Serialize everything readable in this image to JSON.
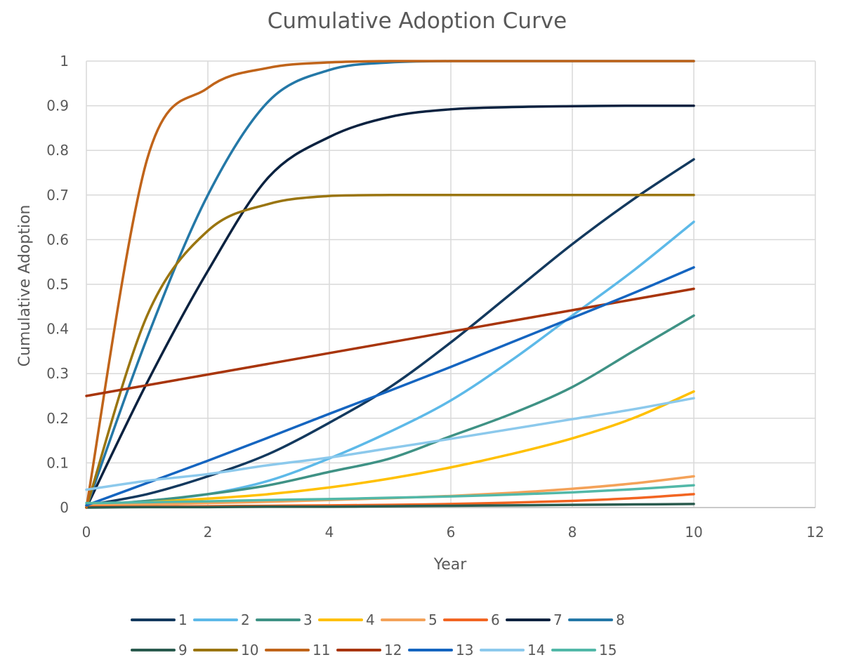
{
  "chart_data": {
    "type": "line",
    "title": "Cumulative Adoption Curve",
    "xlabel": "Year",
    "ylabel": "Cumulative Adoption",
    "xlim": [
      0,
      12
    ],
    "ylim": [
      0,
      1
    ],
    "x_ticks": [
      "0",
      "2",
      "4",
      "6",
      "8",
      "10",
      "12"
    ],
    "y_ticks": [
      "0",
      "0.1",
      "0.2",
      "0.3",
      "0.4",
      "0.5",
      "0.6",
      "0.7",
      "0.8",
      "0.9",
      "1"
    ],
    "grid": true,
    "legend_position": "bottom",
    "x": [
      0,
      1,
      2,
      3,
      4,
      5,
      6,
      7,
      8,
      9,
      10
    ],
    "series": [
      {
        "name": "1",
        "color": "#13395E",
        "values": [
          0.005,
          0.03,
          0.07,
          0.12,
          0.19,
          0.27,
          0.37,
          0.48,
          0.59,
          0.69,
          0.78
        ]
      },
      {
        "name": "2",
        "color": "#5DB9E8",
        "values": [
          0.005,
          0.015,
          0.03,
          0.06,
          0.11,
          0.17,
          0.24,
          0.33,
          0.43,
          0.53,
          0.64
        ]
      },
      {
        "name": "3",
        "color": "#3F9285",
        "values": [
          0.005,
          0.015,
          0.03,
          0.05,
          0.08,
          0.11,
          0.16,
          0.21,
          0.27,
          0.35,
          0.43
        ]
      },
      {
        "name": "4",
        "color": "#FFC000",
        "values": [
          0.005,
          0.012,
          0.02,
          0.03,
          0.045,
          0.065,
          0.09,
          0.12,
          0.155,
          0.2,
          0.26
        ]
      },
      {
        "name": "5",
        "color": "#F4A259",
        "values": [
          0.005,
          0.007,
          0.01,
          0.013,
          0.017,
          0.021,
          0.026,
          0.033,
          0.042,
          0.054,
          0.07
        ]
      },
      {
        "name": "6",
        "color": "#F26522",
        "values": [
          0.002,
          0.002,
          0.003,
          0.004,
          0.005,
          0.006,
          0.008,
          0.011,
          0.015,
          0.021,
          0.03
        ]
      },
      {
        "name": "7",
        "color": "#0B2240",
        "values": [
          0.0,
          0.28,
          0.53,
          0.74,
          0.83,
          0.875,
          0.892,
          0.897,
          0.899,
          0.9,
          0.9
        ]
      },
      {
        "name": "8",
        "color": "#2478A7",
        "values": [
          0.0,
          0.38,
          0.7,
          0.91,
          0.98,
          0.997,
          1.0,
          1.0,
          1.0,
          1.0,
          1.0
        ]
      },
      {
        "name": "9",
        "color": "#2A5B4E",
        "values": [
          0.0,
          0.001,
          0.001,
          0.002,
          0.002,
          0.003,
          0.004,
          0.005,
          0.006,
          0.007,
          0.008
        ]
      },
      {
        "name": "10",
        "color": "#9A7510",
        "values": [
          0.0,
          0.43,
          0.62,
          0.68,
          0.698,
          0.7,
          0.7,
          0.7,
          0.7,
          0.7,
          0.7
        ]
      },
      {
        "name": "11",
        "color": "#C0641A",
        "values": [
          0.0,
          0.78,
          0.94,
          0.985,
          0.997,
          1.0,
          1.0,
          1.0,
          1.0,
          1.0,
          1.0
        ]
      },
      {
        "name": "12",
        "color": "#A8350B",
        "values": [
          0.25,
          0.274,
          0.298,
          0.322,
          0.346,
          0.37,
          0.394,
          0.418,
          0.442,
          0.466,
          0.49
        ]
      },
      {
        "name": "13",
        "color": "#1565C0",
        "values": [
          0.005,
          0.055,
          0.105,
          0.157,
          0.21,
          0.262,
          0.315,
          0.37,
          0.425,
          0.48,
          0.538
        ]
      },
      {
        "name": "14",
        "color": "#8CC9EC",
        "values": [
          0.04,
          0.06,
          0.075,
          0.095,
          0.112,
          0.133,
          0.154,
          0.176,
          0.198,
          0.22,
          0.245
        ]
      },
      {
        "name": "15",
        "color": "#52B8A8",
        "values": [
          0.01,
          0.012,
          0.014,
          0.017,
          0.019,
          0.022,
          0.025,
          0.029,
          0.034,
          0.041,
          0.05
        ]
      }
    ]
  }
}
